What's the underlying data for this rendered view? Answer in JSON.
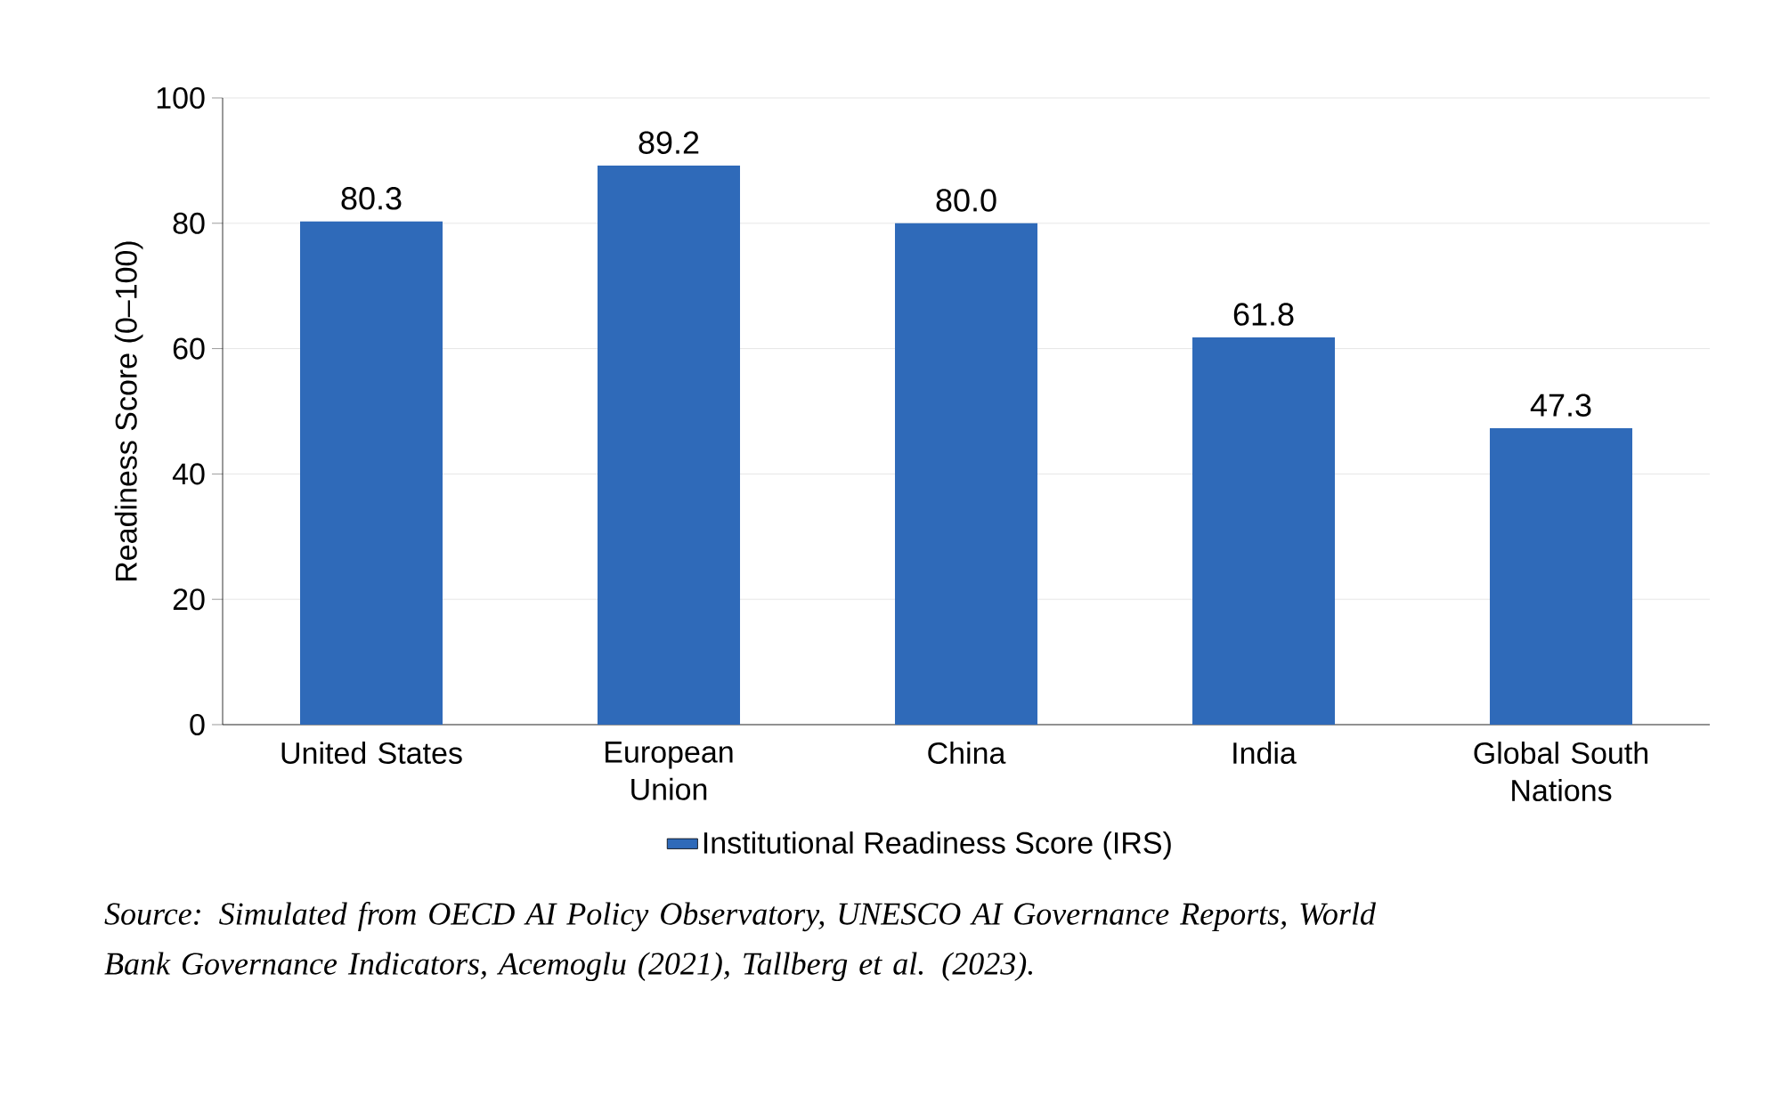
{
  "chart_data": {
    "type": "bar",
    "ylabel": "Readiness Score (0–100)",
    "categories": [
      "United States",
      "European Union",
      "China",
      "India",
      "Global South Nations"
    ],
    "series": [
      {
        "name": "Institutional Readiness Score (IRS)",
        "color": "#2f6ab9",
        "values": [
          80.3,
          89.2,
          80.0,
          61.8,
          47.3
        ],
        "value_labels": [
          "80.3",
          "89.2",
          "80.0",
          "61.8",
          "47.3"
        ]
      }
    ],
    "ylim": [
      0,
      100
    ],
    "yticks": [
      0,
      20,
      40,
      60,
      80,
      100
    ],
    "grid": "y",
    "legend": "bottom",
    "annotations": [
      "Source: Simulated from OECD AI Policy Observatory, UNESCO AI Governance Reports, World Bank Governance Indicators, Acemoglu (2021), Tallberg et al. (2023)."
    ]
  }
}
